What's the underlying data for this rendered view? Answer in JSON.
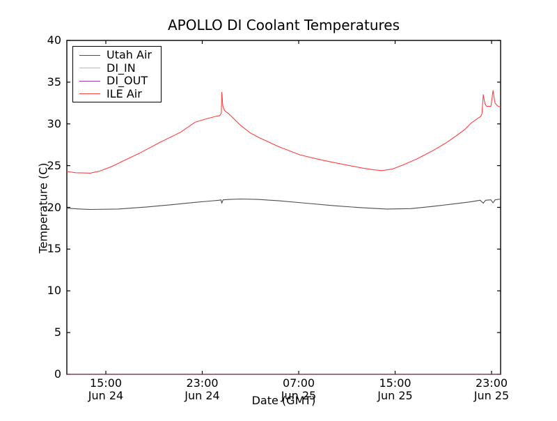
{
  "chart_data": {
    "type": "line",
    "title": "APOLLO DI Coolant Temperatures",
    "xlabel": "Date (GMT)",
    "ylabel": "Temperature (C)",
    "xlim": [
      11.765,
      47.75
    ],
    "ylim": [
      0,
      40
    ],
    "x_axis_unit": "hours since Jun 24 00:00 GMT",
    "grid": false,
    "yticks": [
      0,
      5,
      10,
      15,
      20,
      25,
      30,
      35,
      40
    ],
    "xticks": [
      {
        "pos": 15,
        "line1": "15:00",
        "line2": "Jun 24"
      },
      {
        "pos": 23,
        "line1": "23:00",
        "line2": "Jun 24"
      },
      {
        "pos": 31,
        "line1": "07:00",
        "line2": "Jun 25"
      },
      {
        "pos": 39,
        "line1": "15:00",
        "line2": "Jun 25"
      },
      {
        "pos": 47,
        "line1": "23:00",
        "line2": "Jun 25"
      }
    ],
    "legend": {
      "position": "upper left",
      "entries": [
        "Utah Air",
        "DI_IN",
        "DI_OUT",
        "ILE Air"
      ]
    },
    "series": [
      {
        "name": "Utah Air",
        "color": "#4d4d4d",
        "opacity": 1,
        "points": [
          [
            11.77,
            19.9
          ],
          [
            12.9,
            19.8
          ],
          [
            13.7,
            19.75
          ],
          [
            16.0,
            19.8
          ],
          [
            18.4,
            20.05
          ],
          [
            20.7,
            20.35
          ],
          [
            22.4,
            20.6
          ],
          [
            23.6,
            20.75
          ],
          [
            24.4,
            20.85
          ],
          [
            24.55,
            20.9
          ],
          [
            24.62,
            20.5
          ],
          [
            24.72,
            20.9
          ],
          [
            25.3,
            20.95
          ],
          [
            26.2,
            21.0
          ],
          [
            27.6,
            20.95
          ],
          [
            29.3,
            20.8
          ],
          [
            31.6,
            20.5
          ],
          [
            33.9,
            20.2
          ],
          [
            36.3,
            19.95
          ],
          [
            38.3,
            19.8
          ],
          [
            40.3,
            19.85
          ],
          [
            42.0,
            20.1
          ],
          [
            43.8,
            20.4
          ],
          [
            45.2,
            20.65
          ],
          [
            46.05,
            20.85
          ],
          [
            46.31,
            20.5
          ],
          [
            46.5,
            20.85
          ],
          [
            46.95,
            20.9
          ],
          [
            47.12,
            20.55
          ],
          [
            47.3,
            20.9
          ],
          [
            47.75,
            21.0
          ]
        ]
      },
      {
        "name": "DI_IN",
        "color": "#ffb02e",
        "opacity": 0.6,
        "points": [
          [
            11.77,
            0
          ],
          [
            47.75,
            0
          ]
        ]
      },
      {
        "name": "DI_OUT",
        "color": "#9a3cae",
        "opacity": 0.6,
        "points": [
          [
            11.77,
            0
          ],
          [
            47.75,
            0
          ]
        ]
      },
      {
        "name": "ILE Air",
        "color": "#ff4040",
        "opacity": 1,
        "points": [
          [
            11.77,
            24.3
          ],
          [
            12.5,
            24.15
          ],
          [
            13.7,
            24.1
          ],
          [
            14.5,
            24.35
          ],
          [
            15.5,
            24.9
          ],
          [
            16.5,
            25.6
          ],
          [
            17.8,
            26.5
          ],
          [
            19.5,
            27.8
          ],
          [
            21.2,
            29.0
          ],
          [
            22.4,
            30.2
          ],
          [
            23.3,
            30.6
          ],
          [
            24.1,
            30.9
          ],
          [
            24.45,
            31.0
          ],
          [
            24.58,
            31.3
          ],
          [
            24.62,
            33.8
          ],
          [
            24.7,
            32.2
          ],
          [
            24.85,
            31.6
          ],
          [
            25.2,
            31.2
          ],
          [
            25.55,
            30.7
          ],
          [
            26.2,
            29.8
          ],
          [
            27.0,
            28.9
          ],
          [
            27.8,
            28.3
          ],
          [
            29.3,
            27.3
          ],
          [
            31.1,
            26.3
          ],
          [
            32.8,
            25.7
          ],
          [
            34.5,
            25.2
          ],
          [
            36.3,
            24.7
          ],
          [
            37.2,
            24.5
          ],
          [
            37.9,
            24.4
          ],
          [
            38.8,
            24.6
          ],
          [
            39.7,
            25.1
          ],
          [
            40.8,
            25.8
          ],
          [
            42.0,
            26.7
          ],
          [
            43.2,
            27.7
          ],
          [
            44.1,
            28.6
          ],
          [
            44.75,
            29.3
          ],
          [
            45.3,
            30.1
          ],
          [
            45.8,
            30.6
          ],
          [
            46.1,
            30.9
          ],
          [
            46.2,
            31.2
          ],
          [
            46.31,
            33.5
          ],
          [
            46.45,
            32.4
          ],
          [
            46.6,
            32.1
          ],
          [
            46.95,
            32.1
          ],
          [
            47.12,
            34.0
          ],
          [
            47.28,
            32.5
          ],
          [
            47.5,
            32.15
          ],
          [
            47.75,
            32.0
          ]
        ]
      }
    ]
  }
}
